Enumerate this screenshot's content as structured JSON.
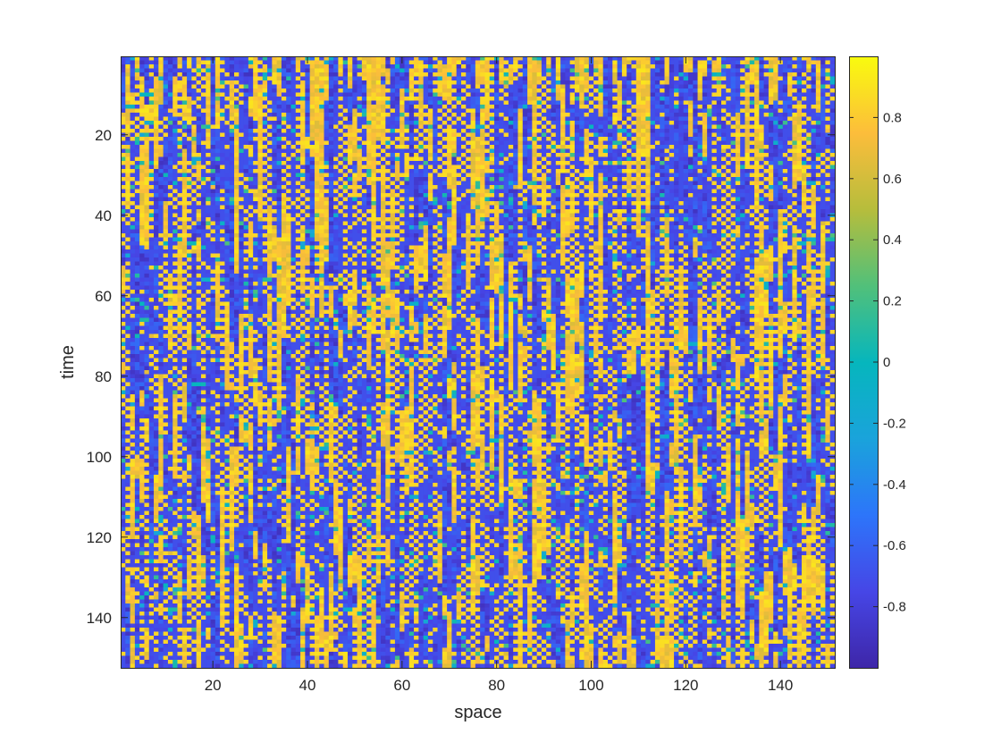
{
  "chart_data": {
    "type": "heatmap",
    "title": "",
    "xlabel": "space",
    "ylabel": "time",
    "x_range": [
      1,
      151
    ],
    "y_range": [
      1,
      152
    ],
    "x_ticks": [
      20,
      40,
      60,
      80,
      100,
      120,
      140
    ],
    "y_ticks": [
      20,
      40,
      60,
      80,
      100,
      120,
      140
    ],
    "y_direction": "reversed",
    "colorbar": {
      "colormap": "parula",
      "range": [
        -1,
        1
      ],
      "ticks": [
        0.8,
        0.6,
        0.4,
        0.2,
        0,
        -0.2,
        -0.4,
        -0.6,
        -0.8
      ],
      "tick_labels": [
        "0.8",
        "0.6",
        "0.4",
        "0.2",
        "0",
        "-0.2",
        "-0.4",
        "-0.6",
        "-0.8"
      ]
    },
    "grid": false,
    "cell_values_description": "Values near +1 (yellow) and -1 (blue) arranged in vertical streaks over time, with short horizontal alternating segments; generated procedurally below as an approximation."
  }
}
